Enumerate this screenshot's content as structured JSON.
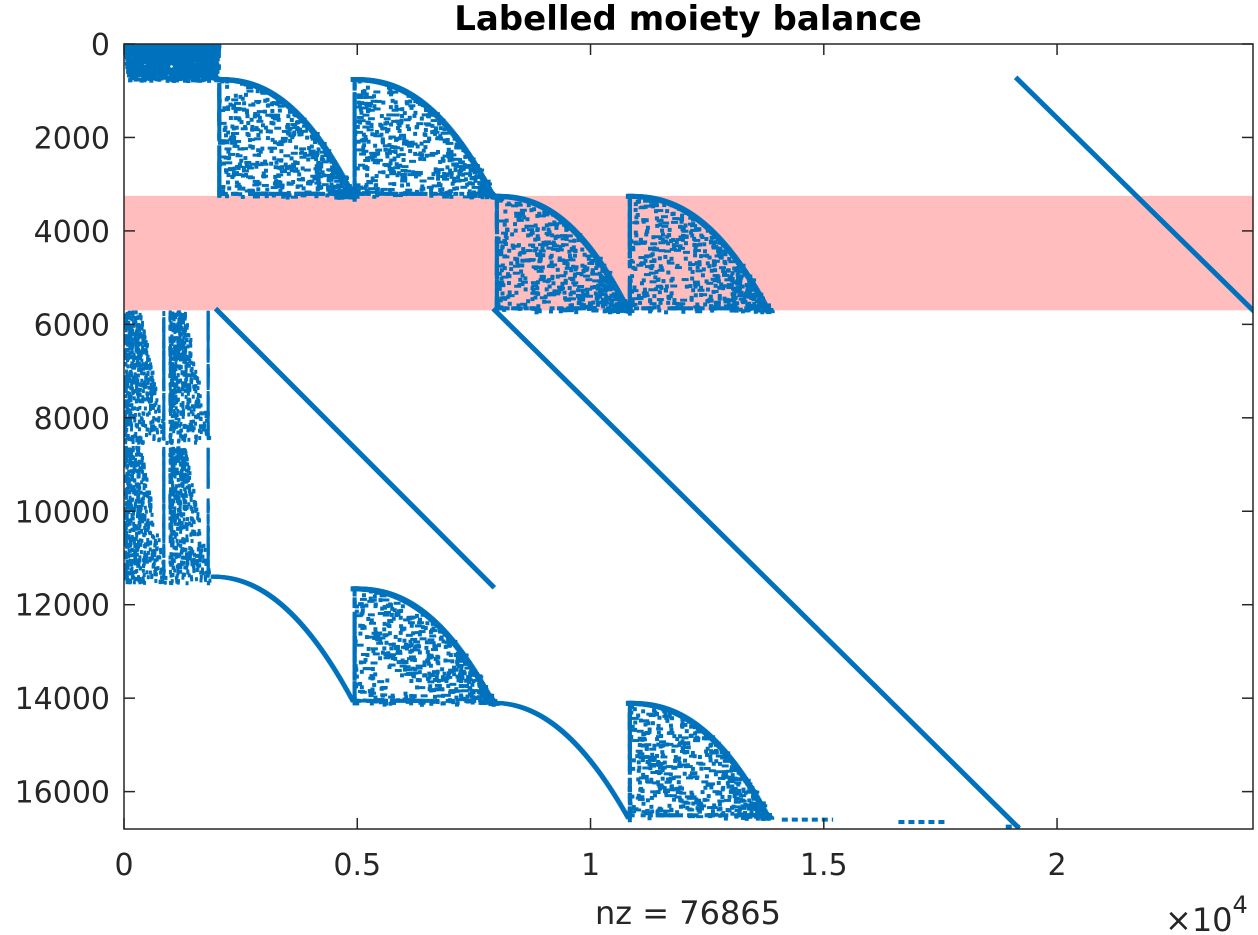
{
  "chart_data": {
    "type": "scatter",
    "subtype": "sparsity-pattern",
    "title": "Labelled moiety balance",
    "xlabel": "nz = 76865",
    "x_multiplier": "×10",
    "x_multiplier_exponent": "4",
    "xlim": [
      0,
      24200
    ],
    "ylim": [
      0,
      16800
    ],
    "y_reversed": true,
    "grid": false,
    "x_tick_values": [
      0,
      5000,
      10000,
      15000,
      20000
    ],
    "x_ticks": [
      "0",
      "0.5",
      "1",
      "1.5",
      "2"
    ],
    "y_tick_values": [
      0,
      2000,
      4000,
      6000,
      8000,
      10000,
      12000,
      14000,
      16000
    ],
    "y_ticks": [
      "0",
      "2000",
      "4000",
      "6000",
      "8000",
      "10000",
      "12000",
      "14000",
      "16000"
    ],
    "marker_color": "#0072BD",
    "highlight_color": "#FF9999",
    "highlight_band": {
      "y_from": 3250,
      "y_to": 5700
    },
    "diagonal_segments": [
      {
        "x0": 19150,
        "y0": 750,
        "x1": 24200,
        "y1": 5700
      },
      {
        "x0": 2000,
        "y0": 5700,
        "x1": 7900,
        "y1": 11600
      },
      {
        "x0": 7950,
        "y0": 5700,
        "x1": 19150,
        "y1": 16750
      }
    ],
    "cluster_blocks": [
      {
        "x0": 0,
        "x1": 2000,
        "y0": 0,
        "y1": 750,
        "density": "dense"
      },
      {
        "x0": 2000,
        "x1": 4900,
        "y0": 750,
        "y1": 3250,
        "density": "triangular"
      },
      {
        "x0": 4900,
        "x1": 7900,
        "y0": 750,
        "y1": 3250,
        "density": "triangular"
      },
      {
        "x0": 7950,
        "x1": 10800,
        "y0": 3250,
        "y1": 5700,
        "density": "triangular"
      },
      {
        "x0": 10800,
        "x1": 13800,
        "y0": 3250,
        "y1": 5700,
        "density": "triangular"
      },
      {
        "x0": 0,
        "x1": 1900,
        "y0": 5700,
        "y1": 8500,
        "density": "columnar"
      },
      {
        "x0": 0,
        "x1": 1900,
        "y0": 8600,
        "y1": 11500,
        "density": "columnar"
      },
      {
        "x0": 4900,
        "x1": 7900,
        "y0": 11650,
        "y1": 14100,
        "density": "triangular"
      },
      {
        "x0": 10800,
        "x1": 13800,
        "y0": 14100,
        "y1": 16550,
        "density": "triangular"
      }
    ],
    "curved_traces": [
      {
        "x0": 1900,
        "y0": 11400,
        "x1": 4900,
        "y1": 14050
      },
      {
        "x0": 7900,
        "y0": 14100,
        "x1": 10800,
        "y1": 16550
      }
    ],
    "bottom_fragments": [
      {
        "x0": 14100,
        "x1": 15200,
        "y": 16600
      },
      {
        "x0": 16600,
        "x1": 17600,
        "y": 16650
      },
      {
        "x0": 18900,
        "x1": 19200,
        "y": 16750
      }
    ]
  }
}
